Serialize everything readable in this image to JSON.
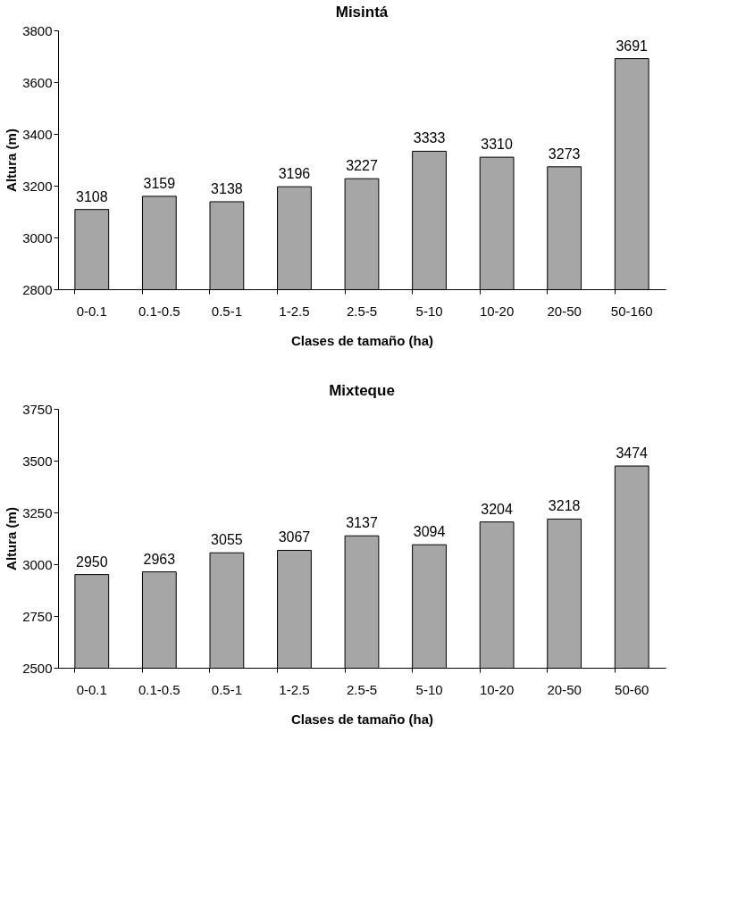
{
  "chart_data": [
    {
      "type": "bar",
      "title": "Misintá",
      "xlabel": "Clases de tamaño (ha)",
      "ylabel": "Altura (m)",
      "categories": [
        "0-0.1",
        "0.1-0.5",
        "0.5-1",
        "1-2.5",
        "2.5-5",
        "5-10",
        "10-20",
        "20-50",
        "50-160"
      ],
      "values": [
        3108,
        3159,
        3138,
        3196,
        3227,
        3333,
        3310,
        3273,
        3691
      ],
      "color": "#a6a6a6",
      "ylim": [
        2800,
        3800
      ],
      "yticks": [
        2800,
        3000,
        3200,
        3400,
        3600,
        3800
      ],
      "data_labels": true,
      "grid": false
    },
    {
      "type": "bar",
      "title": "Mixteque",
      "xlabel": "Clases de tamaño (ha)",
      "ylabel": "Altura (m)",
      "categories": [
        "0-0.1",
        "0.1-0.5",
        "0.5-1",
        "1-2.5",
        "2.5-5",
        "5-10",
        "10-20",
        "20-50",
        "50-60"
      ],
      "values": [
        2950,
        2963,
        3055,
        3067,
        3137,
        3094,
        3204,
        3218,
        3474
      ],
      "color": "#a6a6a6",
      "ylim": [
        2500,
        3750
      ],
      "yticks": [
        2500,
        2750,
        3000,
        3250,
        3500,
        3750
      ],
      "data_labels": true,
      "grid": false
    }
  ]
}
